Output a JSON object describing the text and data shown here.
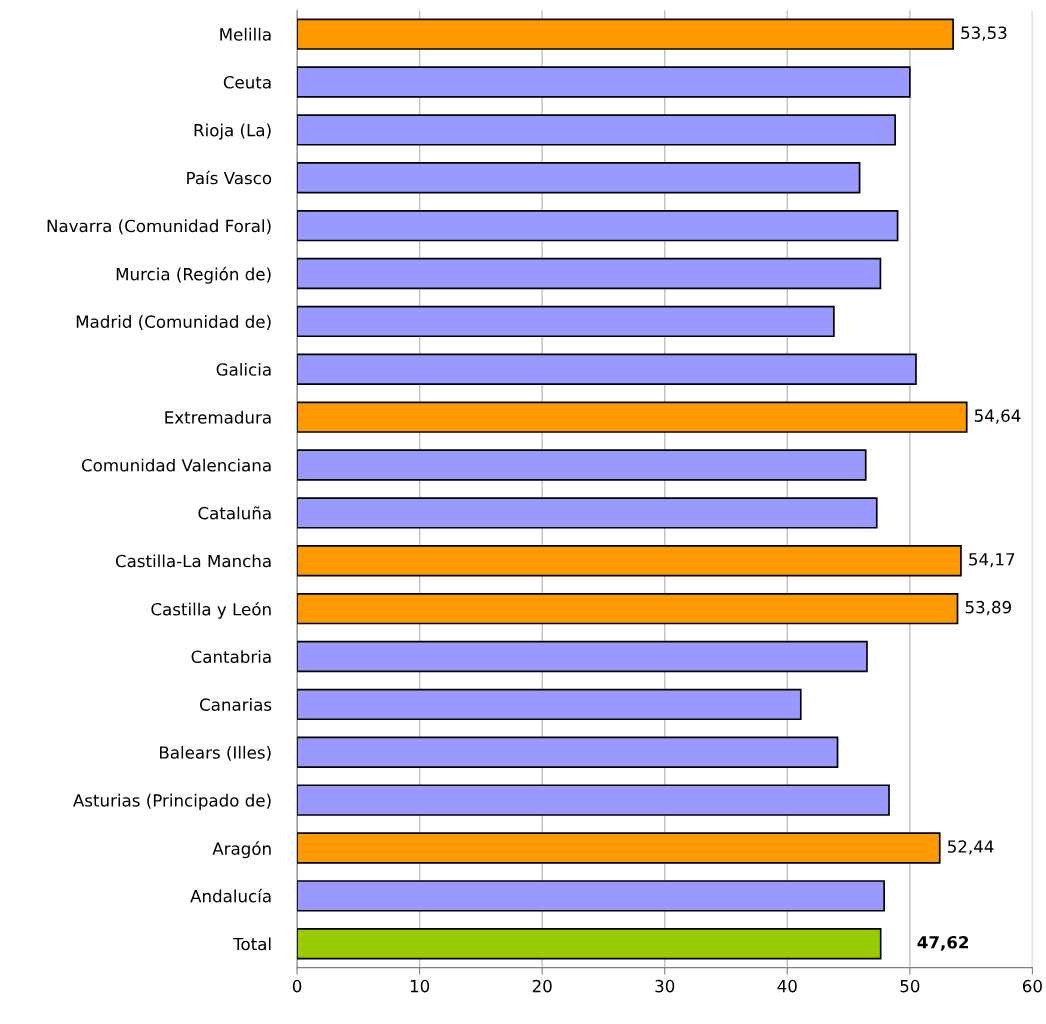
{
  "chart_data": {
    "type": "bar",
    "orientation": "horizontal",
    "categories": [
      "Melilla",
      "Ceuta",
      "Rioja (La)",
      "País Vasco",
      "Navarra (Comunidad Foral)",
      "Murcia (Región de)",
      "Madrid (Comunidad de)",
      "Galicia",
      "Extremadura",
      "Comunidad Valenciana",
      "Cataluña",
      "Castilla-La Mancha",
      "Castilla y León",
      "Cantabria",
      "Canarias",
      "Balears (Illes)",
      "Asturias (Principado de)",
      "Aragón",
      "Andalucía",
      "Total"
    ],
    "values": [
      53.53,
      50.0,
      48.8,
      45.9,
      49.0,
      47.6,
      43.8,
      50.5,
      54.64,
      46.4,
      47.3,
      54.17,
      53.89,
      46.5,
      41.1,
      44.1,
      48.3,
      52.44,
      47.9,
      47.62
    ],
    "colors": [
      "#ff9900",
      "#9999ff",
      "#9999ff",
      "#9999ff",
      "#9999ff",
      "#9999ff",
      "#9999ff",
      "#9999ff",
      "#ff9900",
      "#9999ff",
      "#9999ff",
      "#ff9900",
      "#ff9900",
      "#9999ff",
      "#9999ff",
      "#9999ff",
      "#9999ff",
      "#ff9900",
      "#9999ff",
      "#99cc00"
    ],
    "value_labels": [
      "53,53",
      null,
      null,
      null,
      null,
      null,
      null,
      null,
      "54,64",
      null,
      null,
      "54,17",
      "53,89",
      null,
      null,
      null,
      null,
      "52,44",
      null,
      "47,62"
    ],
    "xlim": [
      0,
      60
    ],
    "xticks": [
      0,
      10,
      20,
      30,
      40,
      50,
      60
    ],
    "grid": "x"
  }
}
